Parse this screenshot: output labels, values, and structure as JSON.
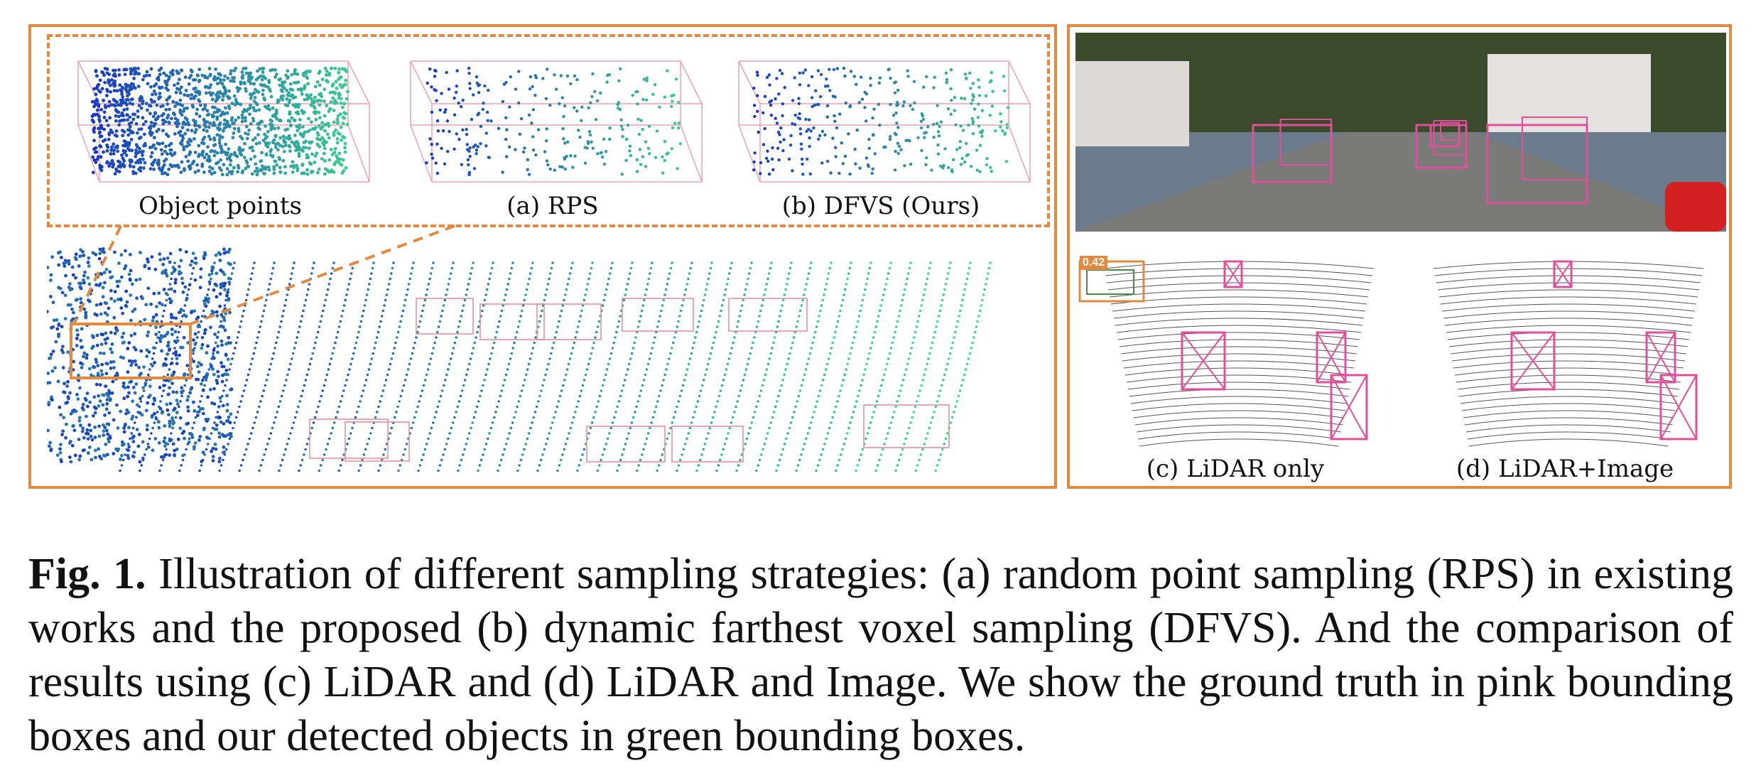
{
  "left_panel": {
    "labels": {
      "object_points": "Object points",
      "rps": "(a) RPS",
      "dfvs": "(b) DFVS (Ours)"
    }
  },
  "right_panel": {
    "labels": {
      "lidar_only": "(c) LiDAR only",
      "lidar_image": "(d) LiDAR+Image"
    },
    "score": "0.42"
  },
  "caption": {
    "fig_label": "Fig. 1.",
    "text": "Illustration of different sampling strategies: (a) random point sampling (RPS) in existing works and the proposed (b) dynamic farthest voxel sampling (DFVS). And the comparison of results using (c) LiDAR and (d) LiDAR and Image. We show the ground truth in pink bounding boxes and our detected objects in green bounding boxes."
  },
  "colors": {
    "accent_orange": "#e08a42",
    "gt_pink": "#e0509a",
    "detect_green": "#4a8a4a"
  }
}
